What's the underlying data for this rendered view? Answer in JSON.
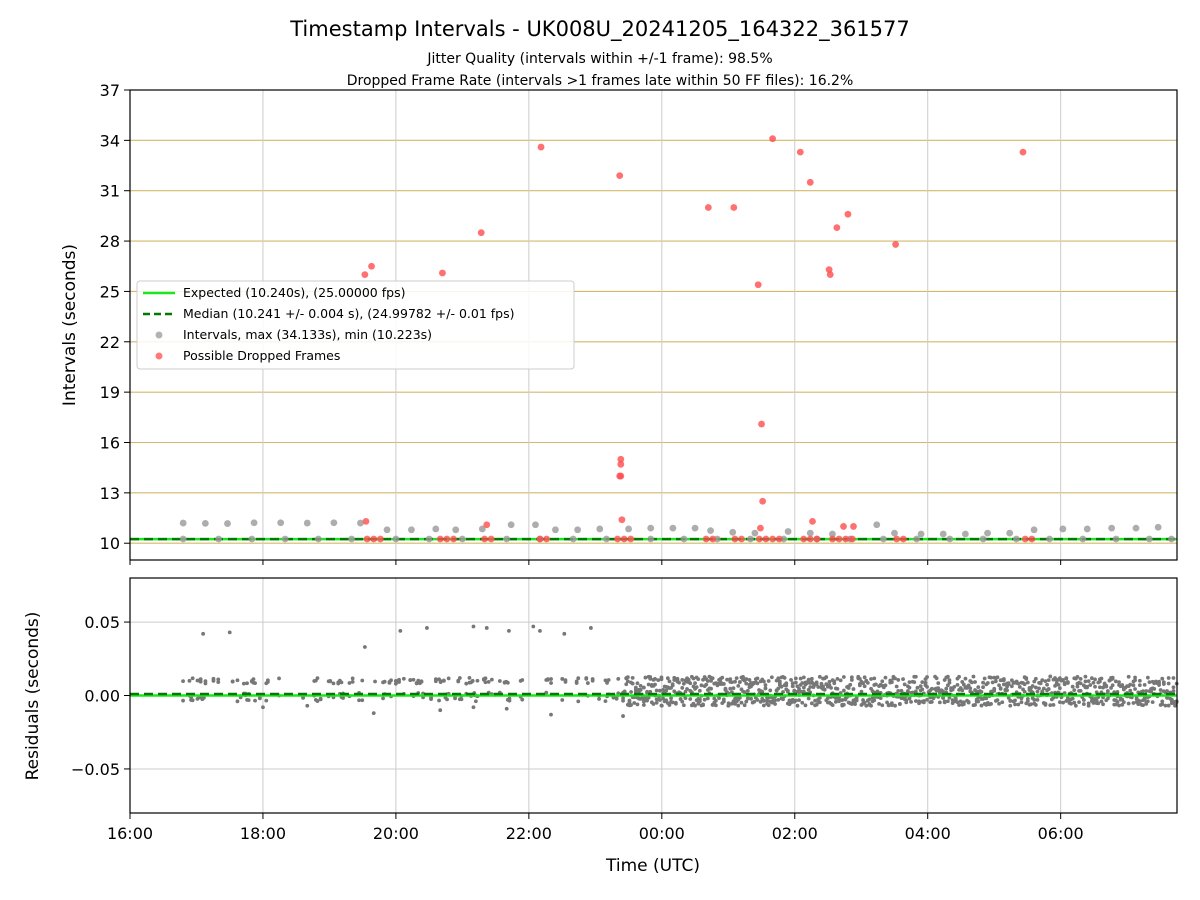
{
  "chart_data": [
    {
      "type": "scatter",
      "title": "Timestamp Intervals - UK008U_20241205_164322_361577",
      "subtitle_1": "Jitter Quality (intervals within +/-1 frame): 98.5%",
      "subtitle_2": "Dropped Frame Rate (intervals >1 frames late within 50 FF files): 16.2%",
      "xlabel": "",
      "ylabel": "Intervals (seconds)",
      "xlim": [
        "16:00",
        "07:45"
      ],
      "ylim": [
        9.0,
        37.0
      ],
      "yticks": [
        "10",
        "13",
        "16",
        "19",
        "22",
        "25",
        "28",
        "31",
        "34",
        "37"
      ],
      "grid": true,
      "legend_position": "center-left",
      "legend": [
        "Expected (10.240s), (25.00000 fps)",
        "Median (10.241 +/- 0.004 s), (24.99782 +/- 0.01 fps)",
        "Intervals, max (34.133s), min (10.223s)",
        "Possible Dropped Frames"
      ],
      "lines": [
        {
          "name": "Expected (10.240s), (25.00000 fps)",
          "y": 10.24,
          "color": "#1ee61e",
          "style": "solid"
        },
        {
          "name": "Median (10.241 +/- 0.004 s), (24.99782 +/- 0.01 fps)",
          "y": 10.241,
          "color": "#007a00",
          "style": "dashed"
        }
      ],
      "series": [
        {
          "name": "Intervals, max (34.133s), min (10.223s)",
          "color": "#999999",
          "points": [
            [
              "16:48",
              11.2
            ],
            [
              "17:08",
              11.18
            ],
            [
              "17:28",
              11.17
            ],
            [
              "17:52",
              11.22
            ],
            [
              "18:16",
              11.22
            ],
            [
              "18:40",
              11.2
            ],
            [
              "19:04",
              11.22
            ],
            [
              "19:28",
              11.2
            ],
            [
              "19:52",
              10.8
            ],
            [
              "20:14",
              10.8
            ],
            [
              "20:36",
              10.85
            ],
            [
              "20:54",
              10.8
            ],
            [
              "21:18",
              10.85
            ],
            [
              "21:44",
              11.1
            ],
            [
              "22:06",
              11.1
            ],
            [
              "22:24",
              10.8
            ],
            [
              "22:44",
              10.8
            ],
            [
              "23:04",
              10.85
            ],
            [
              "23:30",
              10.85
            ],
            [
              "23:50",
              10.9
            ],
            [
              "00:10",
              10.9
            ],
            [
              "00:30",
              10.9
            ],
            [
              "00:44",
              10.75
            ],
            [
              "01:04",
              10.65
            ],
            [
              "01:24",
              10.6
            ],
            [
              "01:54",
              10.7
            ],
            [
              "02:14",
              10.6
            ],
            [
              "02:34",
              10.55
            ],
            [
              "03:14",
              11.1
            ],
            [
              "03:30",
              10.6
            ],
            [
              "03:54",
              10.55
            ],
            [
              "04:14",
              10.55
            ],
            [
              "04:34",
              10.55
            ],
            [
              "04:54",
              10.6
            ],
            [
              "05:14",
              10.6
            ],
            [
              "05:36",
              10.8
            ],
            [
              "06:02",
              10.85
            ],
            [
              "06:24",
              10.85
            ],
            [
              "06:46",
              10.9
            ],
            [
              "07:08",
              10.9
            ],
            [
              "07:28",
              10.95
            ],
            [
              "16:48",
              10.25
            ],
            [
              "17:20",
              10.25
            ],
            [
              "17:50",
              10.25
            ],
            [
              "18:20",
              10.25
            ],
            [
              "18:50",
              10.25
            ],
            [
              "19:20",
              10.25
            ],
            [
              "20:00",
              10.25
            ],
            [
              "20:30",
              10.25
            ],
            [
              "21:00",
              10.25
            ],
            [
              "21:40",
              10.25
            ],
            [
              "22:10",
              10.25
            ],
            [
              "22:40",
              10.25
            ],
            [
              "23:10",
              10.25
            ],
            [
              "23:50",
              10.25
            ],
            [
              "00:20",
              10.25
            ],
            [
              "00:50",
              10.25
            ],
            [
              "01:20",
              10.25
            ],
            [
              "01:50",
              10.25
            ],
            [
              "02:20",
              10.25
            ],
            [
              "02:50",
              10.25
            ],
            [
              "03:20",
              10.25
            ],
            [
              "03:50",
              10.25
            ],
            [
              "04:20",
              10.25
            ],
            [
              "04:50",
              10.25
            ],
            [
              "05:20",
              10.25
            ],
            [
              "05:50",
              10.25
            ],
            [
              "06:20",
              10.25
            ],
            [
              "06:50",
              10.25
            ],
            [
              "07:20",
              10.25
            ],
            [
              "07:40",
              10.25
            ]
          ]
        },
        {
          "name": "Possible Dropped Frames",
          "color": "#ff4d4d",
          "points": [
            [
              "19:32",
              26.0
            ],
            [
              "19:38",
              26.5
            ],
            [
              "20:42",
              26.1
            ],
            [
              "21:17",
              28.5
            ],
            [
              "22:11",
              33.6
            ],
            [
              "23:22",
              31.9
            ],
            [
              "23:23",
              15.0
            ],
            [
              "23:23",
              14.7
            ],
            [
              "23:22",
              14.0
            ],
            [
              "23:23",
              14.0
            ],
            [
              "23:24",
              11.4
            ],
            [
              "21:22",
              11.1
            ],
            [
              "19:33",
              11.3
            ],
            [
              "00:42",
              30.0
            ],
            [
              "01:05",
              30.0
            ],
            [
              "01:27",
              25.4
            ],
            [
              "01:30",
              17.1
            ],
            [
              "01:31",
              12.5
            ],
            [
              "01:29",
              10.9
            ],
            [
              "01:40",
              34.1
            ],
            [
              "02:05",
              33.3
            ],
            [
              "02:14",
              31.5
            ],
            [
              "02:16",
              11.3
            ],
            [
              "02:31",
              26.3
            ],
            [
              "02:32",
              26.0
            ],
            [
              "02:38",
              28.8
            ],
            [
              "02:44",
              11.0
            ],
            [
              "02:48",
              29.6
            ],
            [
              "02:53",
              11.0
            ],
            [
              "03:31",
              27.8
            ],
            [
              "05:26",
              33.3
            ],
            [
              "19:34",
              10.25
            ],
            [
              "19:40",
              10.25
            ],
            [
              "19:46",
              10.25
            ],
            [
              "20:40",
              10.25
            ],
            [
              "20:46",
              10.25
            ],
            [
              "20:52",
              10.25
            ],
            [
              "21:20",
              10.25
            ],
            [
              "21:26",
              10.25
            ],
            [
              "22:10",
              10.25
            ],
            [
              "22:16",
              10.25
            ],
            [
              "23:20",
              10.25
            ],
            [
              "23:26",
              10.25
            ],
            [
              "23:32",
              10.25
            ],
            [
              "00:40",
              10.25
            ],
            [
              "00:46",
              10.25
            ],
            [
              "01:06",
              10.25
            ],
            [
              "01:12",
              10.25
            ],
            [
              "01:28",
              10.25
            ],
            [
              "01:34",
              10.25
            ],
            [
              "01:40",
              10.25
            ],
            [
              "01:46",
              10.25
            ],
            [
              "02:08",
              10.25
            ],
            [
              "02:14",
              10.25
            ],
            [
              "02:20",
              10.25
            ],
            [
              "02:34",
              10.25
            ],
            [
              "02:40",
              10.25
            ],
            [
              "02:46",
              10.25
            ],
            [
              "02:52",
              10.25
            ],
            [
              "03:32",
              10.25
            ],
            [
              "03:38",
              10.25
            ],
            [
              "05:28",
              10.25
            ],
            [
              "05:34",
              10.25
            ]
          ]
        }
      ]
    },
    {
      "type": "scatter",
      "xlabel": "Time (UTC)",
      "ylabel": "Residuals (seconds)",
      "xlim": [
        "16:00",
        "07:45"
      ],
      "ylim": [
        -0.08,
        0.08
      ],
      "yticks": [
        "0.05",
        "0.00",
        "−0.05"
      ],
      "xticks": [
        "16:00",
        "18:00",
        "20:00",
        "22:00",
        "00:00",
        "02:00",
        "04:00",
        "06:00"
      ],
      "grid": true,
      "lines": [
        {
          "name": "Expected",
          "y": 0.0,
          "color": "#1ee61e",
          "style": "solid"
        },
        {
          "name": "Median",
          "y": 0.001,
          "color": "#007a00",
          "style": "dashed"
        }
      ],
      "series": [
        {
          "name": "Residuals",
          "color": "#777777",
          "points": [
            [
              "17:06",
              0.042
            ],
            [
              "17:30",
              0.043
            ],
            [
              "19:32",
              0.033
            ],
            [
              "20:04",
              0.044
            ],
            [
              "20:28",
              0.046
            ],
            [
              "21:10",
              0.047
            ],
            [
              "21:22",
              0.046
            ],
            [
              "21:42",
              0.044
            ],
            [
              "22:04",
              0.047
            ],
            [
              "22:10",
              0.044
            ],
            [
              "22:32",
              0.042
            ],
            [
              "22:56",
              0.046
            ],
            [
              "18:00",
              -0.008
            ],
            [
              "18:40",
              -0.007
            ],
            [
              "19:40",
              -0.012
            ],
            [
              "20:40",
              -0.01
            ],
            [
              "21:10",
              -0.008
            ],
            [
              "21:40",
              -0.009
            ],
            [
              "22:20",
              -0.013
            ],
            [
              "23:25",
              -0.014
            ],
            [
              "00:00",
              -0.007
            ],
            [
              "01:00",
              -0.007
            ]
          ],
          "band": {
            "from": "16:45",
            "to": "07:45",
            "min": -0.007,
            "max": 0.013
          }
        }
      ]
    }
  ]
}
